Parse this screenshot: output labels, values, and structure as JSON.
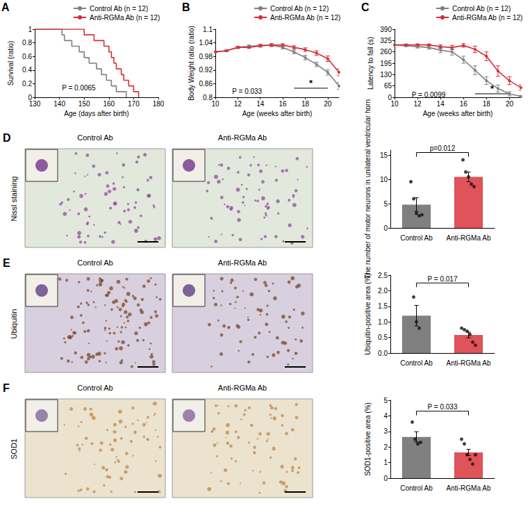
{
  "chart_data": [
    {
      "title": "A",
      "type": "line",
      "line_style": "step",
      "grid": false,
      "legend": "top right",
      "x_label": "Age (days after birth)",
      "y_label": "Survival (ratio)",
      "xlim": [
        130,
        180
      ],
      "xticks": [
        130,
        140,
        150,
        160,
        170,
        180
      ],
      "ylim": [
        0,
        1
      ],
      "yticks": [
        0,
        0.2,
        0.4,
        0.6,
        0.8,
        1
      ],
      "series": [
        {
          "name": "Control Ab (n = 12)",
          "color": "#808080",
          "x": [
            130,
            141,
            142,
            145,
            148,
            150,
            152,
            155,
            157,
            159,
            161,
            163,
            167
          ],
          "values": [
            1,
            0.917,
            0.833,
            0.75,
            0.667,
            0.583,
            0.5,
            0.417,
            0.333,
            0.25,
            0.167,
            0.083,
            0
          ]
        },
        {
          "name": "Anti-RGMa Ab (n = 12)",
          "color": "#d62f3a",
          "x": [
            130,
            150,
            154,
            158,
            160,
            161,
            162,
            163,
            165,
            166,
            168,
            170,
            172
          ],
          "values": [
            1,
            0.917,
            0.833,
            0.75,
            0.667,
            0.583,
            0.5,
            0.417,
            0.333,
            0.25,
            0.167,
            0.083,
            0
          ]
        }
      ],
      "annotations": [
        {
          "text": "P = 0.0065",
          "x": 141,
          "y": 0.14
        }
      ]
    },
    {
      "title": "B",
      "type": "line",
      "marker": "circle",
      "grid": false,
      "legend": "top right",
      "x_label": "Age (weeks after birth)",
      "y_label": "Body Weight ratio (ratio)",
      "xlim": [
        10,
        21
      ],
      "xticks": [
        10,
        12,
        14,
        16,
        18,
        20
      ],
      "ylim": [
        0.8,
        1.1
      ],
      "yticks": [
        0.8,
        0.86,
        0.92,
        0.98,
        1.04,
        1.1
      ],
      "x": [
        10,
        11,
        12,
        13,
        14,
        15,
        16,
        17,
        18,
        19,
        20,
        21
      ],
      "series": [
        {
          "name": "Control Ab (n = 12)",
          "color": "#808080",
          "values": [
            1.0,
            1.005,
            1.02,
            1.025,
            1.028,
            1.03,
            1.02,
            1.0,
            0.975,
            0.945,
            0.91,
            0.85
          ],
          "errors": [
            0.003,
            0.004,
            0.005,
            0.005,
            0.006,
            0.006,
            0.007,
            0.008,
            0.01,
            0.01,
            0.012,
            0.015
          ]
        },
        {
          "name": "Anti-RGMa Ab (n = 12)",
          "color": "#d62f3a",
          "values": [
            1.0,
            1.005,
            1.02,
            1.02,
            1.027,
            1.03,
            1.03,
            1.02,
            1.01,
            0.995,
            0.97,
            0.91
          ],
          "errors": [
            0.003,
            0.004,
            0.005,
            0.005,
            0.006,
            0.006,
            0.006,
            0.007,
            0.008,
            0.01,
            0.012,
            0.015
          ]
        }
      ],
      "annotations": [
        {
          "text": "P = 0.033",
          "x": 11.5,
          "y": 0.825
        },
        {
          "text": "*",
          "x": [
            17,
            20
          ],
          "y": 0.84
        }
      ]
    },
    {
      "title": "C",
      "type": "line",
      "marker": "circle",
      "grid": false,
      "legend": "top right",
      "x_label": "Age (weeks after birth)",
      "y_label": "Latency to fall (s)",
      "xlim": [
        10,
        21
      ],
      "xticks": [
        10,
        12,
        14,
        16,
        18,
        20
      ],
      "ylim": [
        0,
        390
      ],
      "yticks": [
        0,
        65,
        130,
        195,
        260,
        325,
        390
      ],
      "x": [
        10,
        11,
        12,
        13,
        14,
        15,
        16,
        17,
        18,
        19,
        20,
        21
      ],
      "series": [
        {
          "name": "Control Ab (n = 12)",
          "color": "#808080",
          "values": [
            300,
            295,
            290,
            285,
            270,
            260,
            215,
            155,
            95,
            50,
            20,
            5
          ],
          "errors": [
            0,
            5,
            8,
            10,
            15,
            18,
            20,
            25,
            22,
            20,
            12,
            5
          ]
        },
        {
          "name": "Anti-RGMa Ab (n = 12)",
          "color": "#d62f3a",
          "values": [
            300,
            300,
            300,
            300,
            290,
            285,
            297,
            275,
            235,
            150,
            95,
            55
          ],
          "errors": [
            0,
            5,
            6,
            5,
            10,
            12,
            10,
            18,
            25,
            30,
            22,
            15
          ]
        }
      ],
      "annotations": [
        {
          "text": "P = 0.0099",
          "x": 11.5,
          "y": 15
        },
        {
          "text": "*",
          "x": [
            17,
            20
          ],
          "y": 20
        }
      ]
    },
    {
      "title": "D",
      "type": "bar",
      "grid": false,
      "image_panel": {
        "stain": "Nissl staining",
        "captions": [
          "Control Ab",
          "Anti-RGMa Ab"
        ]
      },
      "y_label": "The number of motor neurons in unilateral ventricular horn",
      "categories": [
        "Control Ab",
        "Anti-RGMa Ab"
      ],
      "values": [
        4.8,
        10.5
      ],
      "errors": [
        1.4,
        1.0
      ],
      "colors": [
        "#808080",
        "#e0535a"
      ],
      "points": [
        [
          9.5,
          6,
          3,
          2.5,
          2.7
        ],
        [
          14,
          11.5,
          10.5,
          9,
          8.5
        ]
      ],
      "ylim": [
        0,
        16
      ],
      "yticks": [
        0,
        5,
        10,
        15
      ],
      "annotations": [
        {
          "text": "p=0.012",
          "x": [
            "Control Ab",
            "Anti-RGMa Ab"
          ],
          "y": 15.5
        }
      ]
    },
    {
      "title": "E",
      "type": "bar",
      "grid": false,
      "image_panel": {
        "stain": "Ubiquitin",
        "captions": [
          "Control Ab",
          "Anti-RGMa Ab"
        ]
      },
      "y_label": "Ubiquitin-positive area (%)",
      "categories": [
        "Control Ab",
        "Anti-RGMa Ab"
      ],
      "values": [
        1.2,
        0.58
      ],
      "errors": [
        0.33,
        0.09
      ],
      "colors": [
        "#808080",
        "#e0535a"
      ],
      "points": [
        [
          1.8,
          1.0,
          0.8
        ],
        [
          0.8,
          0.75,
          0.7,
          0.6,
          0.35,
          0.25
        ]
      ],
      "ylim": [
        0,
        2.5
      ],
      "yticks": [
        {
          "value": 0,
          "label": "0.0"
        },
        0.5,
        {
          "value": 1,
          "label": "1.0"
        },
        1.5,
        {
          "value": 2,
          "label": "2.0"
        },
        2.5
      ],
      "annotations": [
        {
          "text": "P = 0.017",
          "x": [
            "Control Ab",
            "Anti-RGMa Ab"
          ],
          "y": 2.25
        }
      ]
    },
    {
      "title": "F",
      "type": "bar",
      "grid": false,
      "image_panel": {
        "stain": "SOD1",
        "captions": [
          "Control Ab",
          "Anti-RGMa Ab"
        ]
      },
      "y_label": "SOD1-positive area (%)",
      "categories": [
        "Control Ab",
        "Anti-RGMa Ab"
      ],
      "values": [
        2.65,
        1.65
      ],
      "errors": [
        0.33,
        0.2
      ],
      "colors": [
        "#808080",
        "#e0535a"
      ],
      "points": [
        [
          3.6,
          2.5,
          2.2,
          2.3
        ],
        [
          2.5,
          2.2,
          1.5,
          1.2,
          0.9,
          1.5
        ]
      ],
      "ylim": [
        0,
        5
      ],
      "yticks": [
        0,
        1,
        2,
        3,
        4,
        5
      ],
      "annotations": [
        {
          "text": "P = 0.033",
          "x": [
            "Control Ab",
            "Anti-RGMa Ab"
          ],
          "y": 4.3
        }
      ]
    }
  ]
}
